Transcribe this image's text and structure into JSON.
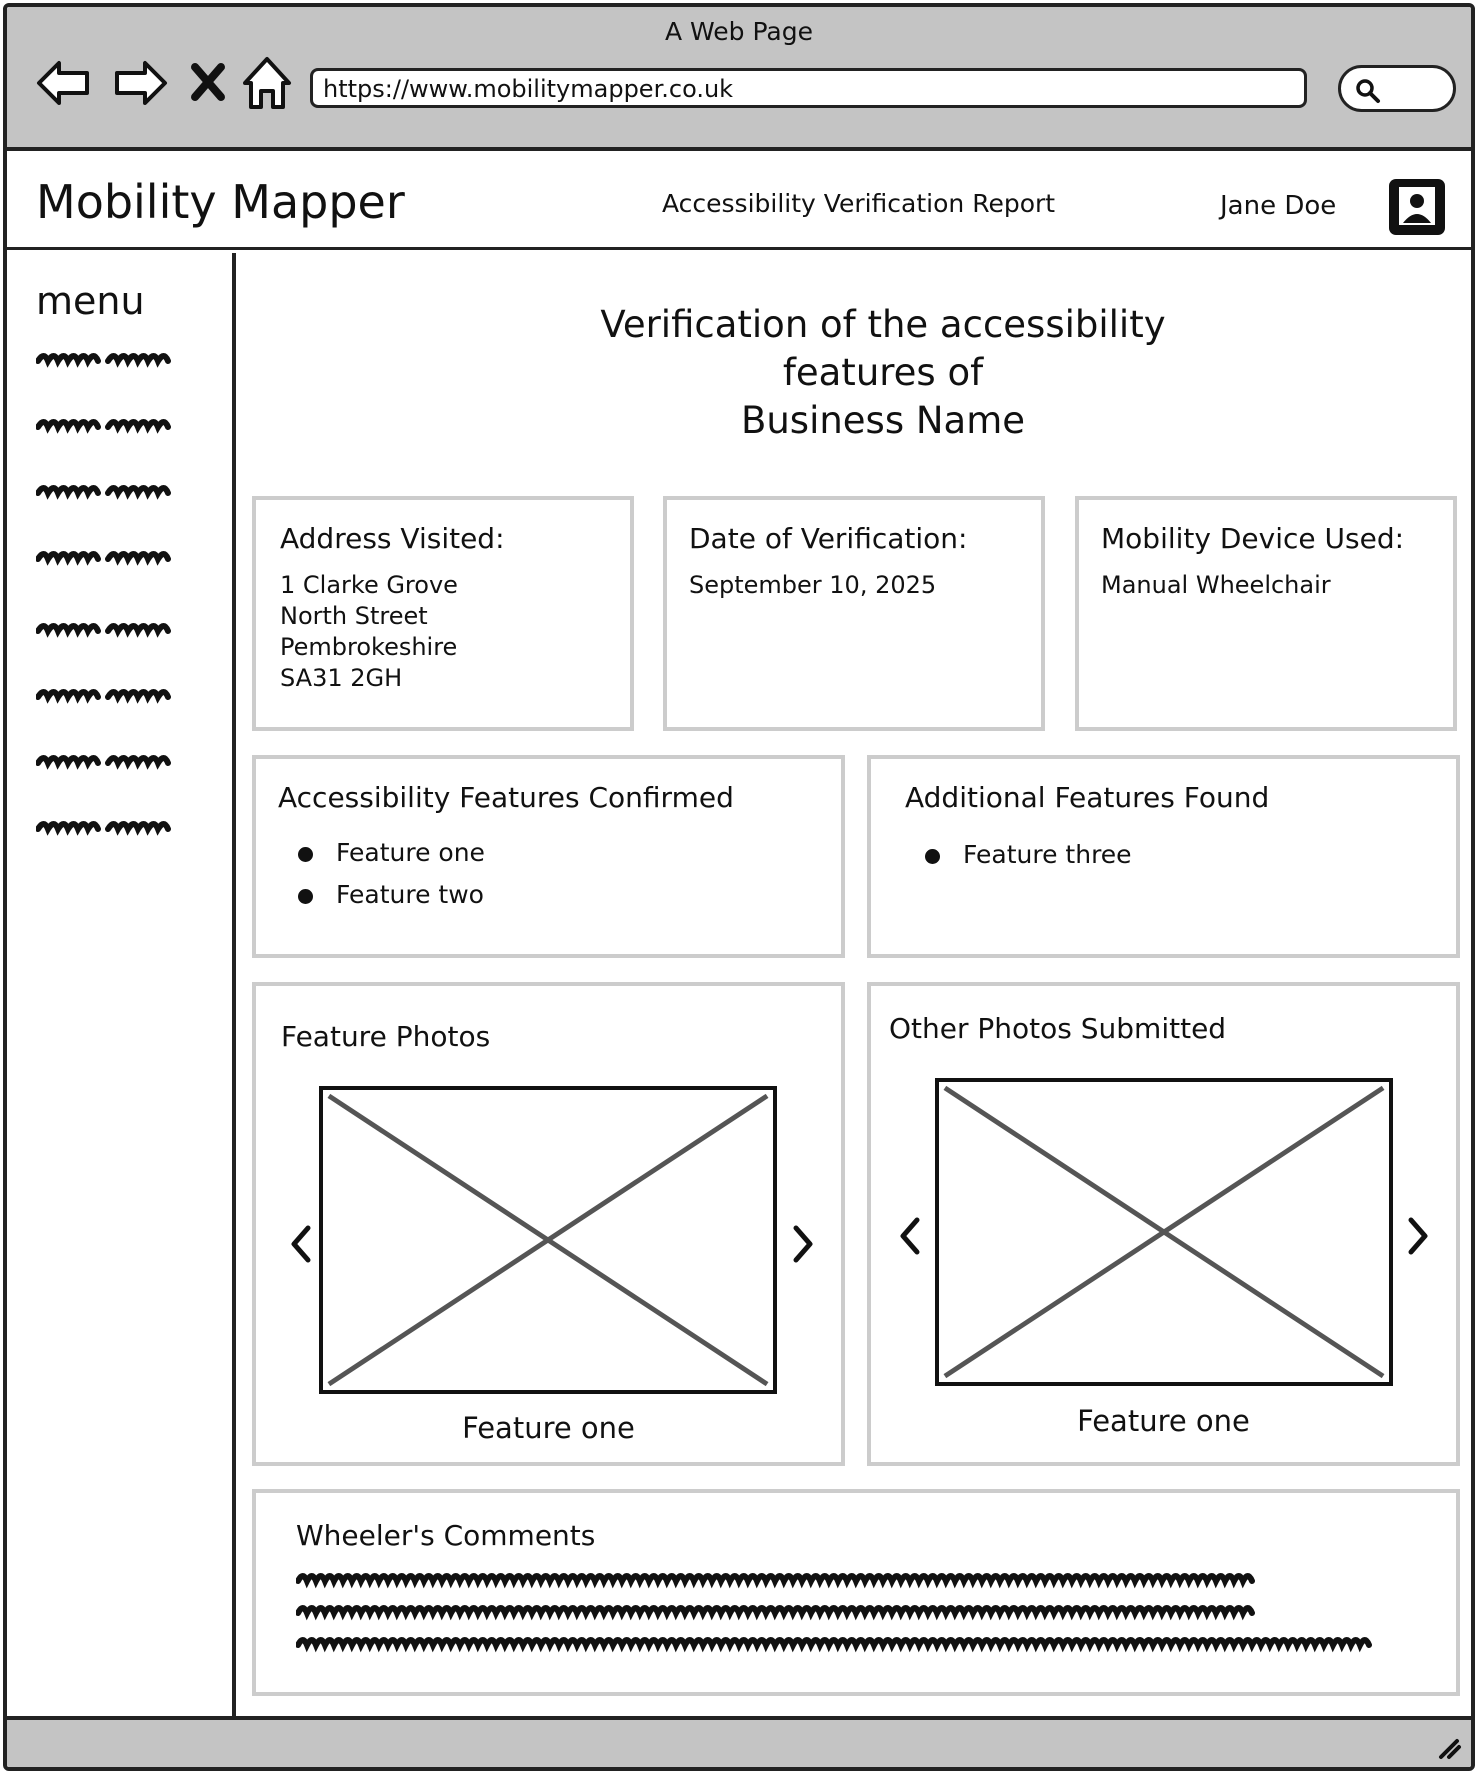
{
  "browser": {
    "window_title": "A Web Page",
    "url": "https://www.mobilitymapper.co.uk"
  },
  "header": {
    "brand": "Mobility Mapper",
    "report_title": "Accessibility Verification Report",
    "user_name": "Jane Doe"
  },
  "sidebar": {
    "title": "menu",
    "items": [
      "placeholder",
      "placeholder",
      "placeholder",
      "placeholder",
      "placeholder",
      "placeholder",
      "placeholder",
      "placeholder"
    ]
  },
  "main": {
    "title_line1": "Verification of the accessibility",
    "title_line2": "features of",
    "title_line3": "Business Name",
    "address": {
      "label": "Address Visited:",
      "value": "1 Clarke Grove\nNorth Street\nPembrokeshire\nSA31 2GH"
    },
    "date": {
      "label": "Date of Verification:",
      "value": "September 10, 2025"
    },
    "device": {
      "label": "Mobility Device Used:",
      "value": "Manual Wheelchair"
    },
    "confirmed_features": {
      "label": "Accessibility Features Confirmed",
      "items": [
        "Feature one",
        "Feature two"
      ]
    },
    "additional_features": {
      "label": "Additional Features Found",
      "items": [
        "Feature three"
      ]
    },
    "feature_photos": {
      "label": "Feature Photos",
      "caption": "Feature one"
    },
    "other_photos": {
      "label": "Other Photos Submitted",
      "caption": "Feature one"
    },
    "comments": {
      "label": "Wheeler's Comments"
    }
  },
  "icons": {
    "back": "back-arrow-icon",
    "forward": "forward-arrow-icon",
    "stop": "close-icon",
    "home": "home-icon",
    "search": "search-icon",
    "avatar": "user-avatar-icon",
    "prev": "chevron-left-icon",
    "next": "chevron-right-icon",
    "resize": "resize-grip-icon"
  },
  "colors": {
    "chrome": "#c4c4c4",
    "card_border": "#cccccc",
    "ink": "#111111"
  }
}
